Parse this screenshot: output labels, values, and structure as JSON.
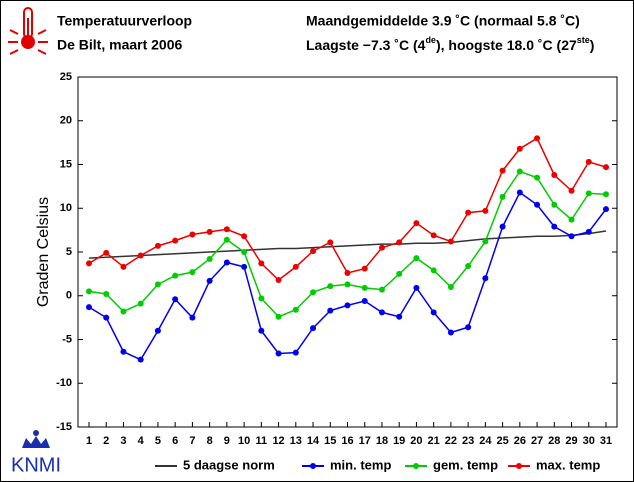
{
  "header": {
    "title": "Temperatuurverloop",
    "subtitle": "De Bilt, maart 2006",
    "stats_line1": "Maandgemiddelde 3.9 ˚C (normaal 5.8 ˚C)",
    "stats_line2": [
      "Laagste −7.3 ˚C (4",
      "de",
      "), hoogste 18.0 ˚C (27",
      "ste",
      ")"
    ],
    "logo": "KNMI"
  },
  "chart_data": {
    "type": "line",
    "y_label": "Graden Celsius",
    "categories": [
      "1",
      "2",
      "3",
      "4",
      "5",
      "6",
      "7",
      "8",
      "9",
      "10",
      "11",
      "12",
      "13",
      "14",
      "15",
      "16",
      "17",
      "18",
      "19",
      "20",
      "21",
      "22",
      "23",
      "24",
      "25",
      "26",
      "27",
      "28",
      "29",
      "30",
      "31"
    ],
    "ylim": [
      -15,
      25
    ],
    "yticks": [
      -15,
      -10,
      -5,
      0,
      5,
      10,
      15,
      20,
      25
    ],
    "grid": false,
    "legend": "bottom",
    "series": [
      {
        "name": "5 daagse norm",
        "color": "#333333",
        "markers": false,
        "values": [
          4.3,
          4.4,
          4.5,
          4.6,
          4.7,
          4.8,
          4.9,
          5.0,
          5.1,
          5.2,
          5.3,
          5.4,
          5.4,
          5.5,
          5.6,
          5.7,
          5.8,
          5.9,
          5.9,
          6.0,
          6.0,
          6.1,
          6.3,
          6.5,
          6.6,
          6.7,
          6.8,
          6.8,
          6.9,
          7.1,
          7.4
        ]
      },
      {
        "name": "min. temp",
        "color": "#0000ee",
        "markers": true,
        "values": [
          -1.3,
          -2.5,
          -6.4,
          -7.3,
          -4.0,
          -0.4,
          -2.5,
          1.7,
          3.8,
          3.3,
          -4.0,
          -6.6,
          -6.5,
          -3.7,
          -1.7,
          -1.1,
          -0.6,
          -1.9,
          -2.4,
          0.9,
          -1.9,
          -4.2,
          -3.6,
          2.0,
          7.9,
          11.8,
          10.4,
          7.9,
          6.8,
          7.3,
          9.9
        ]
      },
      {
        "name": "gem. temp",
        "color": "#00cc00",
        "markers": true,
        "values": [
          0.5,
          0.2,
          -1.8,
          -0.9,
          1.3,
          2.3,
          2.7,
          4.2,
          6.4,
          5.0,
          -0.3,
          -2.4,
          -1.6,
          0.4,
          1.1,
          1.3,
          0.9,
          0.7,
          2.5,
          4.3,
          2.9,
          1.0,
          3.4,
          6.2,
          11.3,
          14.2,
          13.5,
          10.4,
          8.7,
          11.7,
          11.6
        ]
      },
      {
        "name": "max. temp",
        "color": "#ee0000",
        "markers": true,
        "values": [
          3.7,
          4.9,
          3.3,
          4.6,
          5.7,
          6.3,
          7.0,
          7.3,
          7.6,
          6.8,
          3.7,
          1.8,
          3.3,
          5.1,
          6.1,
          2.6,
          3.1,
          5.5,
          6.1,
          8.3,
          6.9,
          6.2,
          9.5,
          9.7,
          14.3,
          16.8,
          18.0,
          13.8,
          12.0,
          15.3,
          14.7
        ]
      }
    ]
  }
}
